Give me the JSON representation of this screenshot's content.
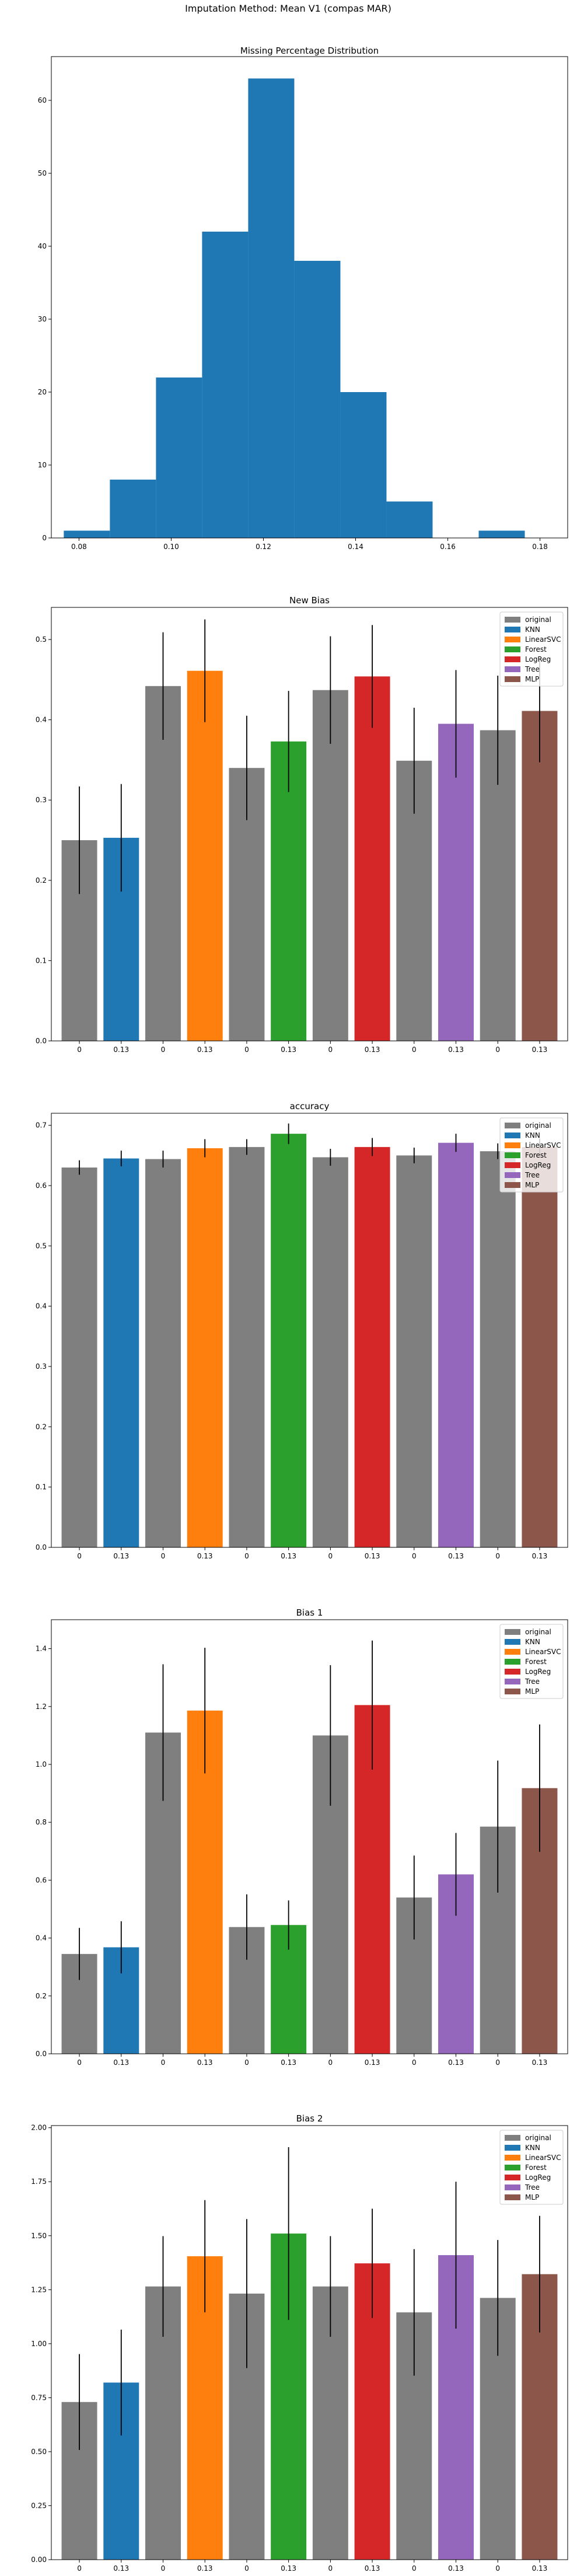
{
  "figure": {
    "suptitle": "Imputation Method: Mean V1 (compas MAR)"
  },
  "chart_data": [
    {
      "type": "histogram",
      "title": "Missing Percentage Distribution",
      "xlabel": "",
      "ylabel": "",
      "xlim": [
        0.074,
        0.186
      ],
      "ylim": [
        0,
        66
      ],
      "xticks": [
        "0.08",
        "0.10",
        "0.12",
        "0.14",
        "0.16",
        "0.18"
      ],
      "yticks": [
        "0",
        "10",
        "20",
        "30",
        "40",
        "50",
        "60"
      ],
      "bins": [
        {
          "start": 0.0767,
          "end": 0.0867,
          "count": 1
        },
        {
          "start": 0.0867,
          "end": 0.0967,
          "count": 8
        },
        {
          "start": 0.0967,
          "end": 0.1067,
          "count": 22
        },
        {
          "start": 0.1067,
          "end": 0.1167,
          "count": 42
        },
        {
          "start": 0.1167,
          "end": 0.1267,
          "count": 63
        },
        {
          "start": 0.1267,
          "end": 0.1367,
          "count": 38
        },
        {
          "start": 0.1367,
          "end": 0.1467,
          "count": 20
        },
        {
          "start": 0.1467,
          "end": 0.1567,
          "count": 5
        },
        {
          "start": 0.1567,
          "end": 0.1667,
          "count": 0
        },
        {
          "start": 0.1667,
          "end": 0.1767,
          "count": 1
        }
      ],
      "color": "#1f77b4"
    },
    {
      "type": "bar",
      "title": "New Bias",
      "ylim": [
        0,
        0.54
      ],
      "yticks": [
        "0.0",
        "0.1",
        "0.2",
        "0.3",
        "0.4",
        "0.5"
      ],
      "categories": [
        "0",
        "0.13"
      ],
      "legend_position": "top-right",
      "groups": [
        {
          "original": 0.25,
          "original_err": 0.067,
          "imputed": 0.253,
          "imputed_err": 0.067,
          "series": "KNN"
        },
        {
          "original": 0.442,
          "original_err": 0.067,
          "imputed": 0.461,
          "imputed_err": 0.064,
          "series": "LinearSVC"
        },
        {
          "original": 0.34,
          "original_err": 0.065,
          "imputed": 0.373,
          "imputed_err": 0.063,
          "series": "Forest"
        },
        {
          "original": 0.437,
          "original_err": 0.067,
          "imputed": 0.454,
          "imputed_err": 0.064,
          "series": "LogReg"
        },
        {
          "original": 0.349,
          "original_err": 0.066,
          "imputed": 0.395,
          "imputed_err": 0.067,
          "series": "Tree"
        },
        {
          "original": 0.387,
          "original_err": 0.068,
          "imputed": 0.411,
          "imputed_err": 0.064,
          "series": "MLP"
        }
      ]
    },
    {
      "type": "bar",
      "title": "accuracy",
      "ylim": [
        0,
        0.72
      ],
      "yticks": [
        "0.0",
        "0.1",
        "0.2",
        "0.3",
        "0.4",
        "0.5",
        "0.6",
        "0.7"
      ],
      "categories": [
        "0",
        "0.13"
      ],
      "legend_position": "top-right",
      "groups": [
        {
          "original": 0.63,
          "original_err": 0.012,
          "imputed": 0.645,
          "imputed_err": 0.013,
          "series": "KNN"
        },
        {
          "original": 0.644,
          "original_err": 0.014,
          "imputed": 0.662,
          "imputed_err": 0.015,
          "series": "LinearSVC"
        },
        {
          "original": 0.664,
          "original_err": 0.013,
          "imputed": 0.686,
          "imputed_err": 0.017,
          "series": "Forest"
        },
        {
          "original": 0.647,
          "original_err": 0.014,
          "imputed": 0.664,
          "imputed_err": 0.015,
          "series": "LogReg"
        },
        {
          "original": 0.65,
          "original_err": 0.013,
          "imputed": 0.671,
          "imputed_err": 0.015,
          "series": "Tree"
        },
        {
          "original": 0.657,
          "original_err": 0.013,
          "imputed": 0.664,
          "imputed_err": 0.014,
          "series": "MLP"
        }
      ]
    },
    {
      "type": "bar",
      "title": "Bias 1",
      "ylim": [
        0,
        1.5
      ],
      "yticks": [
        "0.0",
        "0.2",
        "0.4",
        "0.6",
        "0.8",
        "1.0",
        "1.2",
        "1.4"
      ],
      "categories": [
        "0",
        "0.13"
      ],
      "legend_position": "top-right",
      "groups": [
        {
          "original": 0.345,
          "original_err": 0.09,
          "imputed": 0.368,
          "imputed_err": 0.09,
          "series": "KNN"
        },
        {
          "original": 1.11,
          "original_err": 0.236,
          "imputed": 1.186,
          "imputed_err": 0.217,
          "series": "LinearSVC"
        },
        {
          "original": 0.438,
          "original_err": 0.113,
          "imputed": 0.445,
          "imputed_err": 0.085,
          "series": "Forest"
        },
        {
          "original": 1.1,
          "original_err": 0.243,
          "imputed": 1.205,
          "imputed_err": 0.223,
          "series": "LogReg"
        },
        {
          "original": 0.54,
          "original_err": 0.145,
          "imputed": 0.62,
          "imputed_err": 0.143,
          "series": "Tree"
        },
        {
          "original": 0.785,
          "original_err": 0.228,
          "imputed": 0.918,
          "imputed_err": 0.22,
          "series": "MLP"
        }
      ]
    },
    {
      "type": "bar",
      "title": "Bias 2",
      "ylim": [
        0,
        2.01
      ],
      "yticks": [
        "0.00",
        "0.25",
        "0.50",
        "0.75",
        "1.00",
        "1.25",
        "1.50",
        "1.75",
        "2.00"
      ],
      "categories": [
        "0",
        "0.13"
      ],
      "legend_position": "top-right",
      "groups": [
        {
          "original": 0.73,
          "original_err": 0.222,
          "imputed": 0.82,
          "imputed_err": 0.245,
          "series": "KNN"
        },
        {
          "original": 1.265,
          "original_err": 0.233,
          "imputed": 1.405,
          "imputed_err": 0.26,
          "series": "LinearSVC"
        },
        {
          "original": 1.232,
          "original_err": 0.345,
          "imputed": 1.51,
          "imputed_err": 0.4,
          "series": "Forest"
        },
        {
          "original": 1.265,
          "original_err": 0.233,
          "imputed": 1.372,
          "imputed_err": 0.253,
          "series": "LogReg"
        },
        {
          "original": 1.145,
          "original_err": 0.293,
          "imputed": 1.41,
          "imputed_err": 0.34,
          "series": "Tree"
        },
        {
          "original": 1.212,
          "original_err": 0.268,
          "imputed": 1.322,
          "imputed_err": 0.27,
          "series": "MLP"
        }
      ]
    }
  ],
  "legend": {
    "entries": [
      {
        "label": "original",
        "color": "#7f7f7f"
      },
      {
        "label": "KNN",
        "color": "#1f77b4"
      },
      {
        "label": "LinearSVC",
        "color": "#ff7f0e"
      },
      {
        "label": "Forest",
        "color": "#2ca02c"
      },
      {
        "label": "LogReg",
        "color": "#d62728"
      },
      {
        "label": "Tree",
        "color": "#9467bd"
      },
      {
        "label": "MLP",
        "color": "#8c564b"
      }
    ]
  }
}
